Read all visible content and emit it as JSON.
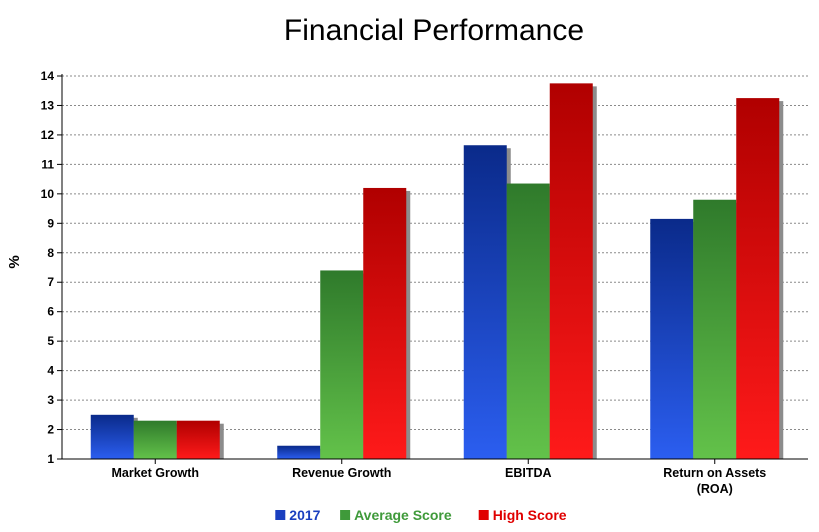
{
  "chart_data": {
    "type": "bar",
    "title": "Financial Performance",
    "xlabel": "",
    "ylabel": "%",
    "ylim": [
      1,
      14
    ],
    "yticks": [
      1,
      2,
      3,
      4,
      5,
      6,
      7,
      8,
      9,
      10,
      11,
      12,
      13,
      14
    ],
    "grid": true,
    "legend_position": "bottom",
    "categories": [
      [
        "Market Growth"
      ],
      [
        "Revenue Growth"
      ],
      [
        "EBITDA"
      ],
      [
        "Return on Assets",
        "(ROA)"
      ]
    ],
    "series": [
      {
        "name": "2017",
        "color": "#1a3fbf",
        "values": [
          2.5,
          1.45,
          11.65,
          9.15
        ]
      },
      {
        "name": "Average Score",
        "color": "#3f9a3a",
        "values": [
          2.3,
          7.4,
          10.35,
          9.8
        ]
      },
      {
        "name": "High Score",
        "color": "#e00000",
        "values": [
          2.3,
          10.2,
          13.75,
          13.25
        ]
      }
    ]
  }
}
